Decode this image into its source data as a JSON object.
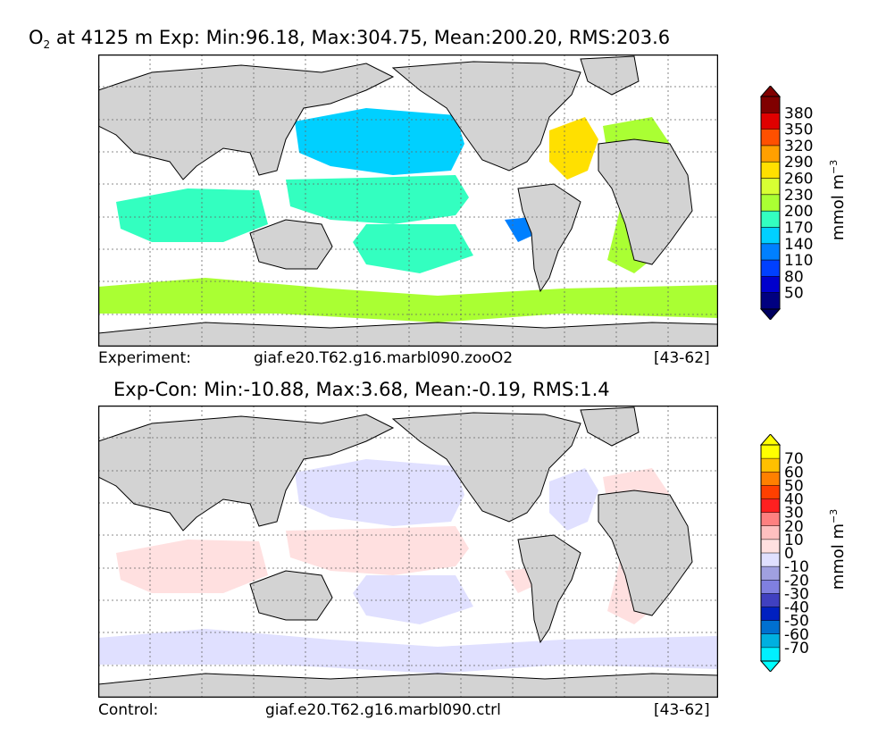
{
  "chart_data": [
    {
      "type": "map",
      "title_species": "O",
      "title_species_sub": "2",
      "title_rest": " at 4125 m Exp: Min:96.18, Max:304.75, Mean:200.20, RMS:203.6",
      "caption": {
        "label": "Experiment:",
        "case": "giaf.e20.T62.g16.marbl090.zooO2",
        "years": "[43-62]"
      },
      "colorbar": {
        "label_text": "mmol m",
        "label_exp": "−3",
        "ticks": [
          "50",
          "80",
          "110",
          "140",
          "170",
          "200",
          "230",
          "260",
          "290",
          "320",
          "350",
          "380"
        ],
        "colors": [
          "#000080",
          "#0000cd",
          "#0040ff",
          "#0080ff",
          "#00d0ff",
          "#33ffc0",
          "#aaff33",
          "#d8ff33",
          "#ffe000",
          "#ffa000",
          "#ff5000",
          "#e00000",
          "#800000"
        ],
        "over_color": "#800000",
        "under_color": "#000060"
      },
      "regions": [
        {
          "name": "north-pacific",
          "color": "#00d0ff"
        },
        {
          "name": "equatorial-pacific",
          "color": "#33ffc0"
        },
        {
          "name": "south-pacific",
          "color": "#33ffc0"
        },
        {
          "name": "north-atlantic",
          "color": "#ffe000"
        },
        {
          "name": "atlantic",
          "color": "#aaff33"
        },
        {
          "name": "indian-ocean",
          "color": "#33ffc0"
        },
        {
          "name": "southern-ocean",
          "color": "#aaff33"
        },
        {
          "name": "east-pacific-patch",
          "color": "#0080ff"
        }
      ]
    },
    {
      "type": "map",
      "title": "Exp-Con: Min:-10.88, Max:3.68, Mean:-0.19, RMS:1.4",
      "caption": {
        "label": "Control:",
        "case": "giaf.e20.T62.g16.marbl090.ctrl",
        "years": "[43-62]"
      },
      "colorbar": {
        "label_text": "mmol m",
        "label_exp": "−3",
        "ticks": [
          "70",
          "60",
          "50",
          "40",
          "30",
          "20",
          "10",
          "0",
          "-10",
          "-20",
          "-30",
          "-40",
          "-50",
          "-60",
          "-70"
        ],
        "colors": [
          "#ffff00",
          "#ffc000",
          "#ff8000",
          "#ff4000",
          "#ff2020",
          "#ff8080",
          "#ffc0c0",
          "#ffe0e0",
          "#e0e0ff",
          "#a0a0e0",
          "#8080e0",
          "#4040c0",
          "#0020c0",
          "#0070d0",
          "#00b0e0",
          "#00f0ff"
        ],
        "over_color": "#ffff00",
        "under_color": "#00ffff"
      },
      "regions": [
        {
          "name": "north-pacific",
          "color": "#e0e0ff"
        },
        {
          "name": "equatorial-pacific",
          "color": "#ffe0e0"
        },
        {
          "name": "south-pacific",
          "color": "#e0e0ff"
        },
        {
          "name": "north-atlantic",
          "color": "#e0e0ff"
        },
        {
          "name": "atlantic",
          "color": "#ffe0e0"
        },
        {
          "name": "indian-ocean",
          "color": "#ffe0e0"
        },
        {
          "name": "southern-ocean",
          "color": "#e0e0ff"
        },
        {
          "name": "east-pacific-patch",
          "color": "#ffe0e0"
        }
      ]
    }
  ]
}
